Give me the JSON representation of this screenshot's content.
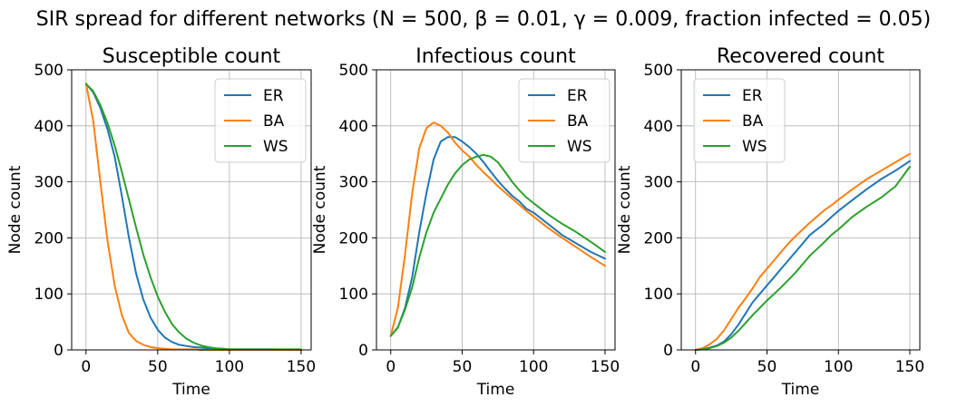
{
  "suptitle": "SIR spread for different networks (N = 500, β = 0.01, γ = 0.009, fraction infected = 0.05)",
  "colors": {
    "ER": "#1f77b4",
    "BA": "#ff7f0e",
    "WS": "#2ca02c"
  },
  "chart_data": [
    {
      "type": "line",
      "title": "Susceptible count",
      "xlabel": "Time",
      "ylabel": "Node count",
      "xlim": [
        -10,
        157
      ],
      "ylim": [
        0,
        500
      ],
      "xticks": [
        0,
        50,
        100,
        150
      ],
      "yticks": [
        0,
        100,
        200,
        300,
        400,
        500
      ],
      "grid": true,
      "legend": "upper right",
      "x": [
        0,
        5,
        10,
        15,
        20,
        25,
        30,
        35,
        40,
        45,
        50,
        55,
        60,
        65,
        70,
        75,
        80,
        85,
        90,
        95,
        100,
        110,
        120,
        130,
        140,
        150
      ],
      "series": [
        {
          "name": "ER",
          "values": [
            475,
            460,
            432,
            394,
            345,
            275,
            200,
            136,
            90,
            58,
            36,
            22,
            14,
            9,
            7,
            5,
            4,
            3,
            2,
            2,
            1,
            1,
            1,
            1,
            0,
            0
          ]
        },
        {
          "name": "BA",
          "values": [
            475,
            410,
            300,
            195,
            115,
            62,
            30,
            16,
            9,
            5,
            3,
            2,
            1,
            1,
            1,
            1,
            0,
            0,
            0,
            0,
            0,
            0,
            0,
            0,
            0,
            0
          ]
        },
        {
          "name": "WS",
          "values": [
            475,
            462,
            437,
            405,
            365,
            318,
            268,
            218,
            170,
            130,
            95,
            68,
            46,
            31,
            20,
            13,
            8,
            5,
            3,
            2,
            1,
            1,
            1,
            1,
            1,
            1
          ]
        }
      ]
    },
    {
      "type": "line",
      "title": "Infectious count",
      "xlabel": "Time",
      "ylabel": "Node count",
      "xlim": [
        -10,
        157
      ],
      "ylim": [
        0,
        500
      ],
      "xticks": [
        0,
        50,
        100,
        150
      ],
      "yticks": [
        0,
        100,
        200,
        300,
        400,
        500
      ],
      "grid": true,
      "legend": "upper right",
      "x": [
        0,
        5,
        10,
        15,
        20,
        25,
        30,
        35,
        40,
        45,
        50,
        55,
        60,
        65,
        70,
        75,
        80,
        85,
        90,
        95,
        100,
        110,
        120,
        130,
        140,
        150
      ],
      "series": [
        {
          "name": "ER",
          "values": [
            25,
            40,
            75,
            130,
            210,
            280,
            340,
            372,
            380,
            380,
            372,
            362,
            350,
            335,
            318,
            302,
            288,
            275,
            265,
            252,
            245,
            225,
            205,
            190,
            175,
            163
          ]
        },
        {
          "name": "BA",
          "values": [
            25,
            75,
            170,
            280,
            360,
            396,
            406,
            400,
            388,
            370,
            356,
            345,
            330,
            317,
            305,
            292,
            281,
            270,
            259,
            248,
            238,
            218,
            200,
            183,
            166,
            150
          ]
        },
        {
          "name": "WS",
          "values": [
            25,
            40,
            72,
            112,
            165,
            210,
            245,
            270,
            295,
            315,
            330,
            340,
            345,
            348,
            345,
            335,
            318,
            300,
            285,
            272,
            262,
            242,
            225,
            210,
            193,
            175
          ]
        }
      ]
    },
    {
      "type": "line",
      "title": "Recovered count",
      "xlabel": "Time",
      "ylabel": "Node count",
      "xlim": [
        -10,
        157
      ],
      "ylim": [
        0,
        500
      ],
      "xticks": [
        0,
        50,
        100,
        150
      ],
      "yticks": [
        0,
        100,
        200,
        300,
        400,
        500
      ],
      "grid": true,
      "legend": "upper left",
      "x": [
        0,
        5,
        10,
        15,
        20,
        25,
        30,
        35,
        40,
        45,
        50,
        55,
        60,
        65,
        70,
        75,
        80,
        85,
        90,
        95,
        100,
        110,
        120,
        130,
        140,
        150
      ],
      "series": [
        {
          "name": "ER",
          "values": [
            0,
            1,
            4,
            8,
            15,
            28,
            45,
            65,
            85,
            100,
            115,
            130,
            145,
            160,
            175,
            190,
            205,
            215,
            225,
            237,
            248,
            268,
            287,
            305,
            320,
            337
          ]
        },
        {
          "name": "BA",
          "values": [
            0,
            3,
            10,
            20,
            35,
            55,
            75,
            92,
            110,
            130,
            145,
            160,
            175,
            190,
            203,
            215,
            227,
            238,
            249,
            258,
            268,
            287,
            305,
            320,
            335,
            350
          ]
        },
        {
          "name": "WS",
          "values": [
            0,
            1,
            3,
            7,
            13,
            22,
            34,
            48,
            62,
            75,
            88,
            100,
            112,
            125,
            138,
            153,
            168,
            180,
            192,
            205,
            215,
            238,
            256,
            272,
            292,
            327
          ]
        }
      ]
    }
  ]
}
